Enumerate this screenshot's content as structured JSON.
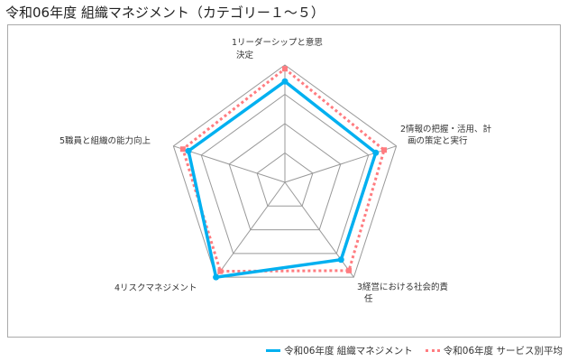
{
  "chart_data": {
    "type": "radar",
    "title": "令和06年度 組織マネジメント（カテゴリー１～５）",
    "categories": [
      [
        "1リーダーシップと意思",
        "決定"
      ],
      [
        "2情報の把握・活用、計",
        "画の策定と実行"
      ],
      [
        "3経営における社会的責",
        "任"
      ],
      [
        "4リスクマネジメント"
      ],
      [
        "5職員と組織の能力向上"
      ]
    ],
    "rlim": [
      1,
      5
    ],
    "rings": 4,
    "series": [
      {
        "name": "令和06年度 組織マネジメント",
        "values": [
          4.44,
          4.26,
          4.26,
          5.0,
          4.46
        ],
        "color": "#00b0f0",
        "style": "solid"
      },
      {
        "name": "令和06年度 サービス別平均",
        "values": [
          4.87,
          4.56,
          4.72,
          4.75,
          4.66
        ],
        "color": "#ff7c80",
        "style": "dotted"
      }
    ],
    "legend": "bottom-right"
  }
}
